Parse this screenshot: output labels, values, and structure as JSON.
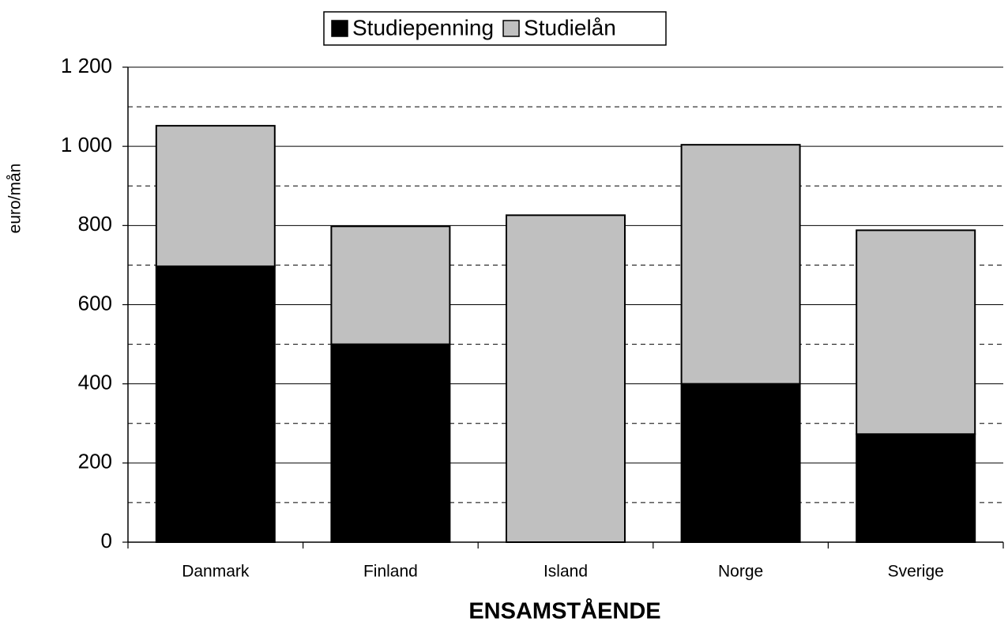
{
  "chart_data": {
    "type": "stacked_bar",
    "x_label": "ENSAMSTÅENDE",
    "y_label": "euro/mån",
    "categories": [
      "Danmark",
      "Finland",
      "Island",
      "Norge",
      "Sverige"
    ],
    "series": [
      {
        "name": "Studiepenning",
        "color": "#000000",
        "values": [
          697,
          500,
          0,
          400,
          273
        ]
      },
      {
        "name": "Studielån",
        "color": "#c0c0c0",
        "values": [
          355,
          298,
          826,
          604,
          515
        ]
      }
    ],
    "ylim": [
      0,
      1200
    ],
    "yticks": [
      0,
      200,
      400,
      600,
      800,
      {
        "value": 1000,
        "label": "1 000"
      },
      {
        "value": 1200,
        "label": "1 200"
      }
    ],
    "grid": true,
    "minor_grid": true,
    "legend": "top"
  }
}
